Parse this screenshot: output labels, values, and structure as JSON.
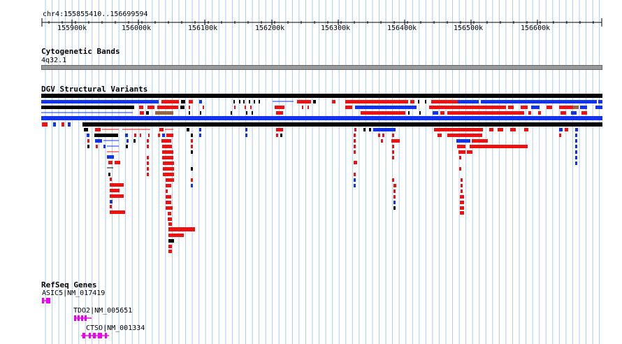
{
  "region": "chr4:155855410..156699594",
  "ruler": {
    "ticks": [
      "155900k",
      "156000k",
      "156100k",
      "156200k",
      "156300k",
      "156400k",
      "156500k",
      "156600k"
    ]
  },
  "tracks": {
    "cytoband": {
      "title": "Cytogenetic Bands",
      "band": "4q32.1"
    },
    "dgv": {
      "title": "DGV Structural Variants"
    },
    "refseq": {
      "title": "RefSeq Genes",
      "genes": [
        "ASIC5|NM_017419",
        "TDO2|NM_005651",
        "CTSO|NM_001334"
      ]
    }
  },
  "colors": {
    "gain": "#ee1111",
    "loss": "#1133ee",
    "both": "#000000",
    "inversion": "#996644",
    "gene": "#ee00ee",
    "grid": "#aaccee",
    "cytoband": "#999999"
  }
}
